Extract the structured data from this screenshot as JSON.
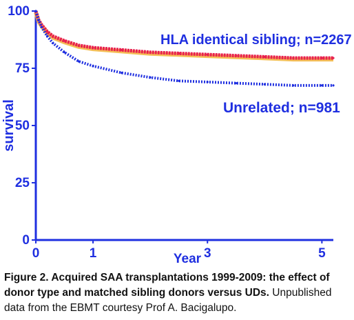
{
  "chart_data": {
    "type": "line",
    "xlabel": "Year",
    "ylabel": "survival",
    "xlim": [
      0,
      5.2
    ],
    "ylim": [
      0,
      100
    ],
    "x_ticks": [
      "0",
      "1",
      "3",
      "5"
    ],
    "x_tick_values": [
      0,
      1,
      3,
      5
    ],
    "y_ticks": [
      "0",
      "25",
      "50",
      "75",
      "100"
    ],
    "y_tick_values": [
      0,
      25,
      50,
      75,
      100
    ],
    "series": [
      {
        "name": "HLA identical sibling; n=2267",
        "color": "#e8204f",
        "x": [
          0,
          0.05,
          0.1,
          0.2,
          0.3,
          0.5,
          0.75,
          1,
          1.5,
          2,
          2.5,
          3,
          3.5,
          4,
          4.5,
          5,
          5.2
        ],
        "y": [
          100,
          96,
          94,
          91,
          89,
          87,
          85,
          84,
          83,
          82,
          81.5,
          81,
          80.5,
          80,
          79.5,
          79.5,
          79.5
        ]
      },
      {
        "name": "Unrelated; n=981",
        "color": "#1f2fe0",
        "x": [
          0,
          0.05,
          0.1,
          0.2,
          0.3,
          0.5,
          0.75,
          1,
          1.5,
          2,
          2.5,
          3,
          3.5,
          4,
          4.5,
          5,
          5.2
        ],
        "y": [
          100,
          96,
          93,
          89,
          86,
          82,
          78,
          76,
          73,
          71,
          69.5,
          69,
          68.5,
          68,
          67.5,
          67.5,
          67.5
        ]
      }
    ],
    "annotations": [
      "HLA identical sibling; n=2267",
      "Unrelated; n=981"
    ]
  },
  "caption": {
    "bold": "Figure 2.  Acquired SAA transplantations 1999-2009: the effect of donor type and matched sibling donors versus UDs.",
    "normal": " Unpublished data from the EBMT courtesy Prof A. Bacigalupo."
  }
}
